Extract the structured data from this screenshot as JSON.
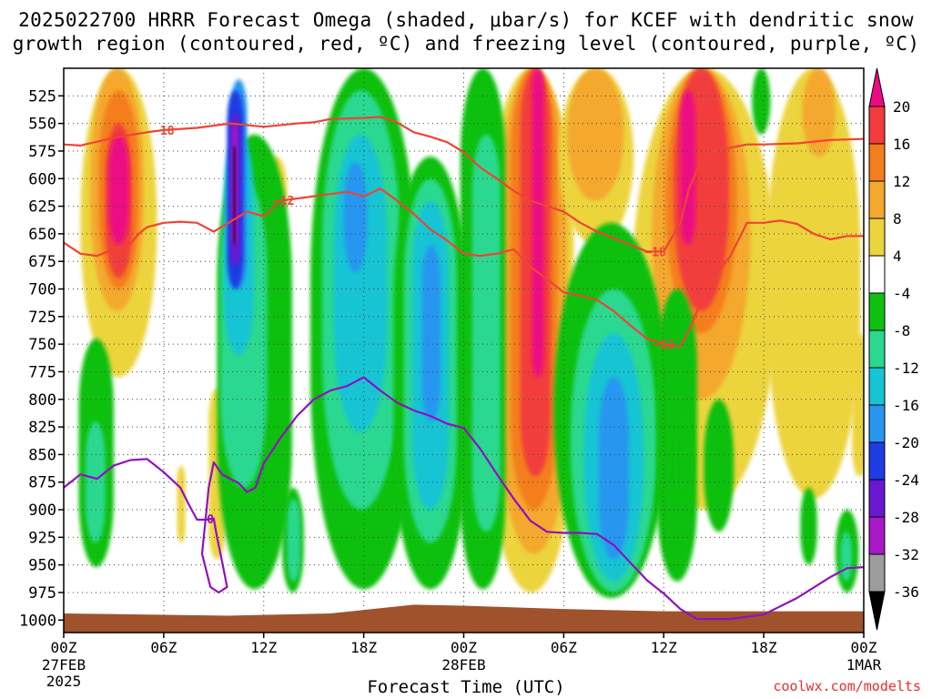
{
  "title_line1": "2025022700 HRRR Forecast Omega (shaded, μbar/s) for KCEF with dendritic snow",
  "title_line2": "growth region (contoured, red, ºC) and freezing level (contoured, purple, ºC)",
  "credit": "coolwx.com/modelts",
  "chart_data": {
    "type": "heatmap",
    "xlabel": "Forecast Time (UTC)",
    "x_ticks": [
      "00Z",
      "06Z",
      "12Z",
      "18Z",
      "00Z",
      "06Z",
      "12Z",
      "18Z",
      "00Z"
    ],
    "x_tick_hours": [
      0,
      6,
      12,
      18,
      24,
      30,
      36,
      42,
      48
    ],
    "x_dates": [
      {
        "hour": 0,
        "line1": "27FEB",
        "line2": "2025"
      },
      {
        "hour": 24,
        "line1": "28FEB",
        "line2": ""
      },
      {
        "hour": 48,
        "line1": "1MAR",
        "line2": ""
      }
    ],
    "y_ticks": [
      525,
      550,
      575,
      600,
      625,
      650,
      675,
      700,
      725,
      750,
      775,
      800,
      825,
      850,
      875,
      900,
      925,
      950,
      975,
      1000
    ],
    "y_range_hpa": [
      500,
      1010
    ],
    "x_range_hours": [
      0,
      48
    ],
    "colorbar_labels": [
      20,
      16,
      12,
      8,
      4,
      -4,
      -8,
      -12,
      -16,
      -20,
      -24,
      -28,
      -32,
      -36
    ],
    "colorbar_colors": [
      "#ec0a84",
      "#f23c3c",
      "#f47e1e",
      "#f4a82e",
      "#ecd43c",
      "#ffffff",
      "#10c010",
      "#2ad890",
      "#16c4d4",
      "#2896f0",
      "#1e3ce4",
      "#6a18d0",
      "#a818c8",
      "#9c9c9c",
      "#000000"
    ],
    "contours": [
      {
        "name": "−18",
        "label_hours": [
          6.0,
          35.5
        ],
        "points": [
          [
            0,
            569
          ],
          [
            1,
            570
          ],
          [
            3,
            563
          ],
          [
            5,
            558
          ],
          [
            6,
            556
          ],
          [
            8,
            554
          ],
          [
            10,
            550
          ],
          [
            12,
            553
          ],
          [
            14,
            550
          ],
          [
            15,
            549
          ],
          [
            16,
            546
          ],
          [
            18,
            545
          ],
          [
            19,
            544
          ],
          [
            20,
            549
          ],
          [
            21,
            558
          ],
          [
            22,
            562
          ],
          [
            23,
            567
          ],
          [
            24,
            576
          ],
          [
            25,
            590
          ],
          [
            26,
            600
          ],
          [
            27,
            611
          ],
          [
            28,
            620
          ],
          [
            29,
            625
          ],
          [
            30,
            630
          ],
          [
            31,
            640
          ],
          [
            32,
            648
          ],
          [
            33,
            654
          ],
          [
            34,
            660
          ],
          [
            35,
            666
          ],
          [
            36,
            666
          ],
          [
            37,
            640
          ],
          [
            37.5,
            610
          ],
          [
            38,
            592
          ],
          [
            38.5,
            580
          ],
          [
            39,
            575
          ],
          [
            40,
            572
          ],
          [
            41,
            569
          ],
          [
            42,
            569
          ],
          [
            44,
            568
          ],
          [
            46,
            565
          ],
          [
            48,
            564
          ]
        ]
      },
      {
        "name": "−12",
        "label_hours": [
          13.2,
          36.0
        ],
        "points": [
          [
            0,
            658
          ],
          [
            1,
            668
          ],
          [
            2,
            670
          ],
          [
            3,
            664
          ],
          [
            4,
            659
          ],
          [
            4.5,
            650
          ],
          [
            5,
            644
          ],
          [
            6,
            640
          ],
          [
            7,
            639
          ],
          [
            8,
            640
          ],
          [
            9,
            648
          ],
          [
            10,
            639
          ],
          [
            11,
            630
          ],
          [
            12,
            634
          ],
          [
            13,
            620
          ],
          [
            14,
            618
          ],
          [
            16,
            614
          ],
          [
            17,
            612
          ],
          [
            18,
            616
          ],
          [
            19,
            609
          ],
          [
            20,
            620
          ],
          [
            21,
            632
          ],
          [
            22,
            646
          ],
          [
            23,
            656
          ],
          [
            24,
            668
          ],
          [
            25,
            670
          ],
          [
            26,
            668
          ],
          [
            27,
            664
          ],
          [
            28,
            680
          ],
          [
            29,
            691
          ],
          [
            30,
            703
          ],
          [
            31,
            706
          ],
          [
            32,
            710
          ],
          [
            33,
            720
          ],
          [
            34,
            733
          ],
          [
            35,
            745
          ],
          [
            36,
            750
          ],
          [
            37,
            752
          ],
          [
            37.5,
            738
          ],
          [
            38,
            720
          ],
          [
            39,
            690
          ],
          [
            40,
            670
          ],
          [
            41,
            640
          ],
          [
            42,
            640
          ],
          [
            43,
            638
          ],
          [
            44,
            641
          ],
          [
            45,
            650
          ],
          [
            46,
            655
          ],
          [
            47,
            652
          ],
          [
            48,
            652
          ]
        ]
      },
      {
        "name": "0",
        "label_hours": [
          8.8
        ],
        "points": [
          [
            0,
            880
          ],
          [
            1,
            868
          ],
          [
            2,
            872
          ],
          [
            3,
            860
          ],
          [
            4,
            855
          ],
          [
            5,
            854
          ],
          [
            6,
            866
          ],
          [
            7,
            880
          ],
          [
            7.5,
            895
          ],
          [
            8,
            909
          ],
          [
            8.5,
            909
          ],
          [
            9,
            908
          ],
          [
            9.2,
            925
          ],
          [
            9.5,
            947
          ],
          [
            9.8,
            970
          ],
          [
            9.3,
            975
          ],
          [
            8.8,
            970
          ],
          [
            8.3,
            940
          ],
          [
            8.5,
            910
          ],
          [
            8.7,
            880
          ],
          [
            9,
            857
          ],
          [
            9.5,
            868
          ],
          [
            10,
            872
          ],
          [
            10.5,
            876
          ],
          [
            11,
            884
          ],
          [
            11.5,
            880
          ],
          [
            12,
            858
          ],
          [
            13,
            835
          ],
          [
            14,
            815
          ],
          [
            15,
            800
          ],
          [
            16,
            792
          ],
          [
            17,
            788
          ],
          [
            18,
            780
          ],
          [
            19,
            792
          ],
          [
            20,
            803
          ],
          [
            21,
            810
          ],
          [
            22,
            815
          ],
          [
            23,
            822
          ],
          [
            24,
            826
          ],
          [
            25,
            845
          ],
          [
            26,
            868
          ],
          [
            27,
            890
          ],
          [
            28,
            910
          ],
          [
            29,
            920
          ],
          [
            30,
            921
          ],
          [
            31,
            921
          ],
          [
            32,
            922
          ],
          [
            33,
            932
          ],
          [
            34,
            948
          ],
          [
            35,
            964
          ],
          [
            36,
            976
          ],
          [
            37,
            990
          ],
          [
            38,
            999
          ],
          [
            40,
            999
          ],
          [
            42,
            995
          ],
          [
            44,
            980
          ],
          [
            46,
            961
          ],
          [
            47,
            953
          ],
          [
            48,
            952
          ]
        ]
      }
    ],
    "terrain_hpa": [
      [
        0,
        994
      ],
      [
        10,
        996
      ],
      [
        16,
        994
      ],
      [
        21,
        986
      ],
      [
        24,
        987
      ],
      [
        30,
        990
      ],
      [
        36,
        992
      ],
      [
        48,
        992
      ]
    ]
  }
}
